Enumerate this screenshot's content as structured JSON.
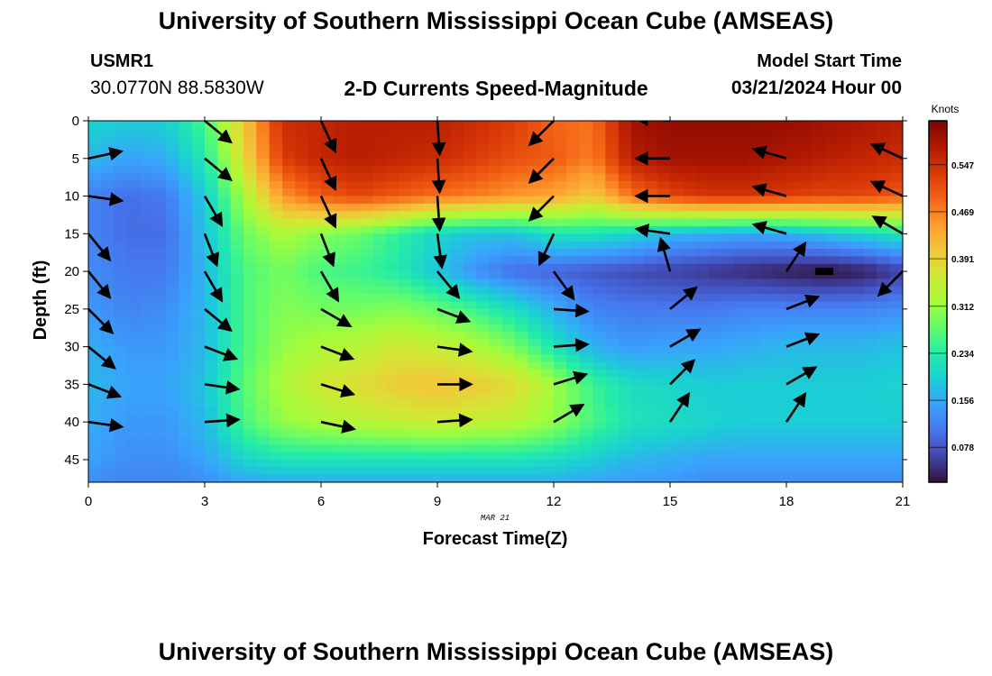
{
  "header": {
    "title": "University of Southern Mississippi Ocean Cube (AMSEAS)",
    "station_id": "USMR1",
    "coordinates": "30.0770N  88.5830W",
    "chart_title": "2-D Currents Speed-Magnitude",
    "start_time_label": "Model Start Time",
    "start_time_value": "03/21/2024 Hour 00"
  },
  "footer": {
    "title": "University of Southern Mississippi Ocean Cube (AMSEAS)"
  },
  "chart_data": {
    "type": "heatmap",
    "title": "2-D Currents Speed-Magnitude",
    "xlabel": "Forecast Time(Z)",
    "ylabel": "Depth (ft)",
    "date_label": "MAR 21",
    "xlim": [
      0,
      21
    ],
    "ylim": [
      48,
      0
    ],
    "x_ticks": [
      0,
      3,
      6,
      9,
      12,
      15,
      18,
      21
    ],
    "y_ticks": [
      0,
      5,
      10,
      15,
      20,
      25,
      30,
      35,
      40,
      45
    ],
    "colorbar": {
      "label": "Knots",
      "range": [
        0.02,
        0.62
      ],
      "ticks": [
        0.078,
        0.156,
        0.234,
        0.312,
        0.391,
        0.469,
        0.547
      ]
    },
    "time_hours": [
      0,
      1,
      2,
      3,
      4,
      5,
      6,
      7,
      8,
      9,
      10,
      11,
      12,
      13,
      14,
      15,
      16,
      17,
      18,
      19,
      20,
      21
    ],
    "depth_ft": [
      0,
      5,
      10,
      15,
      20,
      25,
      30,
      35,
      40,
      45,
      48
    ],
    "speed_knots": [
      [
        0.2,
        0.19,
        0.19,
        0.26,
        0.4,
        0.55,
        0.56,
        0.57,
        0.57,
        0.57,
        0.55,
        0.53,
        0.49,
        0.48,
        0.59,
        0.6,
        0.6,
        0.6,
        0.6,
        0.59,
        0.58,
        0.57
      ],
      [
        0.17,
        0.15,
        0.16,
        0.23,
        0.38,
        0.53,
        0.56,
        0.57,
        0.56,
        0.55,
        0.53,
        0.51,
        0.5,
        0.47,
        0.57,
        0.59,
        0.59,
        0.59,
        0.58,
        0.57,
        0.56,
        0.55
      ],
      [
        0.12,
        0.1,
        0.11,
        0.19,
        0.32,
        0.45,
        0.5,
        0.52,
        0.5,
        0.48,
        0.47,
        0.45,
        0.44,
        0.4,
        0.48,
        0.52,
        0.54,
        0.54,
        0.53,
        0.52,
        0.52,
        0.5
      ],
      [
        0.12,
        0.1,
        0.1,
        0.18,
        0.28,
        0.33,
        0.3,
        0.28,
        0.24,
        0.2,
        0.18,
        0.18,
        0.22,
        0.22,
        0.2,
        0.17,
        0.16,
        0.15,
        0.16,
        0.18,
        0.2,
        0.22
      ],
      [
        0.13,
        0.11,
        0.11,
        0.17,
        0.26,
        0.29,
        0.26,
        0.25,
        0.23,
        0.18,
        0.13,
        0.1,
        0.09,
        0.08,
        0.07,
        0.06,
        0.05,
        0.04,
        0.03,
        0.02,
        0.03,
        0.06
      ],
      [
        0.14,
        0.12,
        0.13,
        0.17,
        0.26,
        0.3,
        0.29,
        0.29,
        0.3,
        0.28,
        0.25,
        0.21,
        0.16,
        0.12,
        0.11,
        0.11,
        0.11,
        0.12,
        0.12,
        0.12,
        0.12,
        0.13
      ],
      [
        0.16,
        0.14,
        0.14,
        0.17,
        0.26,
        0.31,
        0.33,
        0.34,
        0.36,
        0.35,
        0.33,
        0.29,
        0.22,
        0.16,
        0.14,
        0.15,
        0.15,
        0.16,
        0.17,
        0.17,
        0.17,
        0.18
      ],
      [
        0.17,
        0.15,
        0.15,
        0.18,
        0.27,
        0.33,
        0.36,
        0.38,
        0.4,
        0.41,
        0.4,
        0.38,
        0.32,
        0.25,
        0.21,
        0.2,
        0.19,
        0.19,
        0.19,
        0.19,
        0.19,
        0.2
      ],
      [
        0.16,
        0.14,
        0.14,
        0.17,
        0.26,
        0.31,
        0.33,
        0.34,
        0.35,
        0.36,
        0.35,
        0.34,
        0.31,
        0.26,
        0.22,
        0.21,
        0.2,
        0.19,
        0.19,
        0.19,
        0.19,
        0.19
      ],
      [
        0.15,
        0.13,
        0.13,
        0.15,
        0.2,
        0.22,
        0.22,
        0.22,
        0.22,
        0.22,
        0.22,
        0.22,
        0.21,
        0.19,
        0.17,
        0.16,
        0.15,
        0.15,
        0.15,
        0.15,
        0.15,
        0.15
      ],
      [
        0.13,
        0.12,
        0.12,
        0.13,
        0.15,
        0.16,
        0.16,
        0.16,
        0.16,
        0.16,
        0.16,
        0.16,
        0.16,
        0.15,
        0.14,
        0.14,
        0.13,
        0.13,
        0.13,
        0.13,
        0.13,
        0.13
      ]
    ],
    "vectors": [
      {
        "t": 0,
        "d": 5,
        "u": 0.7,
        "v": 0.15
      },
      {
        "t": 0,
        "d": 10,
        "u": 0.7,
        "v": -0.1
      },
      {
        "t": 0,
        "d": 15,
        "u": 0.45,
        "v": -0.55
      },
      {
        "t": 0,
        "d": 20,
        "u": 0.45,
        "v": -0.55
      },
      {
        "t": 0,
        "d": 25,
        "u": 0.5,
        "v": -0.5
      },
      {
        "t": 0,
        "d": 30,
        "u": 0.55,
        "v": -0.45
      },
      {
        "t": 0,
        "d": 35,
        "u": 0.65,
        "v": -0.25
      },
      {
        "t": 0,
        "d": 40,
        "u": 0.7,
        "v": -0.1
      },
      {
        "t": 3,
        "d": 0,
        "u": 0.55,
        "v": -0.45
      },
      {
        "t": 3,
        "d": 5,
        "u": 0.55,
        "v": -0.45
      },
      {
        "t": 3,
        "d": 10,
        "u": 0.35,
        "v": -0.6
      },
      {
        "t": 3,
        "d": 15,
        "u": 0.25,
        "v": -0.65
      },
      {
        "t": 3,
        "d": 20,
        "u": 0.35,
        "v": -0.6
      },
      {
        "t": 3,
        "d": 25,
        "u": 0.55,
        "v": -0.45
      },
      {
        "t": 3,
        "d": 30,
        "u": 0.65,
        "v": -0.25
      },
      {
        "t": 3,
        "d": 35,
        "u": 0.7,
        "v": -0.1
      },
      {
        "t": 3,
        "d": 40,
        "u": 0.7,
        "v": 0.05
      },
      {
        "t": 6,
        "d": 0,
        "u": 0.3,
        "v": -0.65
      },
      {
        "t": 6,
        "d": 5,
        "u": 0.3,
        "v": -0.65
      },
      {
        "t": 6,
        "d": 10,
        "u": 0.3,
        "v": -0.65
      },
      {
        "t": 6,
        "d": 15,
        "u": 0.25,
        "v": -0.65
      },
      {
        "t": 6,
        "d": 20,
        "u": 0.35,
        "v": -0.6
      },
      {
        "t": 6,
        "d": 25,
        "u": 0.6,
        "v": -0.35
      },
      {
        "t": 6,
        "d": 30,
        "u": 0.65,
        "v": -0.25
      },
      {
        "t": 6,
        "d": 35,
        "u": 0.65,
        "v": -0.2
      },
      {
        "t": 6,
        "d": 40,
        "u": 0.7,
        "v": -0.15
      },
      {
        "t": 9,
        "d": 0,
        "u": 0.05,
        "v": -0.75
      },
      {
        "t": 9,
        "d": 5,
        "u": 0.05,
        "v": -0.75
      },
      {
        "t": 9,
        "d": 10,
        "u": 0.05,
        "v": -0.75
      },
      {
        "t": 9,
        "d": 15,
        "u": 0.1,
        "v": -0.75
      },
      {
        "t": 9,
        "d": 20,
        "u": 0.45,
        "v": -0.55
      },
      {
        "t": 9,
        "d": 25,
        "u": 0.65,
        "v": -0.25
      },
      {
        "t": 9,
        "d": 30,
        "u": 0.7,
        "v": -0.1
      },
      {
        "t": 9,
        "d": 35,
        "u": 0.7,
        "v": 0.0
      },
      {
        "t": 9,
        "d": 40,
        "u": 0.7,
        "v": 0.05
      },
      {
        "t": 12,
        "d": 0,
        "u": -0.5,
        "v": -0.5
      },
      {
        "t": 12,
        "d": 5,
        "u": -0.5,
        "v": -0.5
      },
      {
        "t": 12,
        "d": 10,
        "u": -0.5,
        "v": -0.5
      },
      {
        "t": 12,
        "d": 15,
        "u": -0.3,
        "v": -0.65
      },
      {
        "t": 12,
        "d": 20,
        "u": 0.4,
        "v": -0.55
      },
      {
        "t": 12,
        "d": 25,
        "u": 0.7,
        "v": -0.05
      },
      {
        "t": 12,
        "d": 30,
        "u": 0.7,
        "v": 0.05
      },
      {
        "t": 12,
        "d": 35,
        "u": 0.65,
        "v": 0.2
      },
      {
        "t": 12,
        "d": 40,
        "u": 0.6,
        "v": 0.35
      },
      {
        "t": 15,
        "d": 0,
        "u": -0.7,
        "v": 0.05
      },
      {
        "t": 15,
        "d": 5,
        "u": -0.7,
        "v": 0.0
      },
      {
        "t": 15,
        "d": 10,
        "u": -0.7,
        "v": 0.0
      },
      {
        "t": 15,
        "d": 15,
        "u": -0.7,
        "v": 0.1
      },
      {
        "t": 15,
        "d": 20,
        "u": -0.2,
        "v": 0.7
      },
      {
        "t": 15,
        "d": 25,
        "u": 0.55,
        "v": 0.45
      },
      {
        "t": 15,
        "d": 30,
        "u": 0.6,
        "v": 0.35
      },
      {
        "t": 15,
        "d": 35,
        "u": 0.5,
        "v": 0.5
      },
      {
        "t": 15,
        "d": 40,
        "u": 0.4,
        "v": 0.6
      },
      {
        "t": 18,
        "d": 5,
        "u": -0.7,
        "v": 0.2
      },
      {
        "t": 18,
        "d": 10,
        "u": -0.7,
        "v": 0.2
      },
      {
        "t": 18,
        "d": 15,
        "u": -0.7,
        "v": 0.2
      },
      {
        "t": 18,
        "d": 20,
        "u": 0.4,
        "v": 0.6
      },
      {
        "t": 18,
        "d": 25,
        "u": 0.65,
        "v": 0.25
      },
      {
        "t": 18,
        "d": 30,
        "u": 0.65,
        "v": 0.25
      },
      {
        "t": 18,
        "d": 35,
        "u": 0.6,
        "v": 0.35
      },
      {
        "t": 18,
        "d": 40,
        "u": 0.4,
        "v": 0.6
      },
      {
        "t": 21,
        "d": 5,
        "u": -0.65,
        "v": 0.3
      },
      {
        "t": 21,
        "d": 10,
        "u": -0.65,
        "v": 0.3
      },
      {
        "t": 21,
        "d": 15,
        "u": -0.6,
        "v": 0.35
      },
      {
        "t": 21,
        "d": 20,
        "u": -0.5,
        "v": -0.5
      }
    ],
    "colors": {
      "scale": [
        "#30123b",
        "#4145ab",
        "#4675ed",
        "#39a2fc",
        "#1bcfd4",
        "#24eca6",
        "#61fc6c",
        "#a4fc3b",
        "#d1e834",
        "#f3c63a",
        "#fe9b2d",
        "#f36315",
        "#d93806",
        "#b11901",
        "#7a0403"
      ]
    }
  }
}
